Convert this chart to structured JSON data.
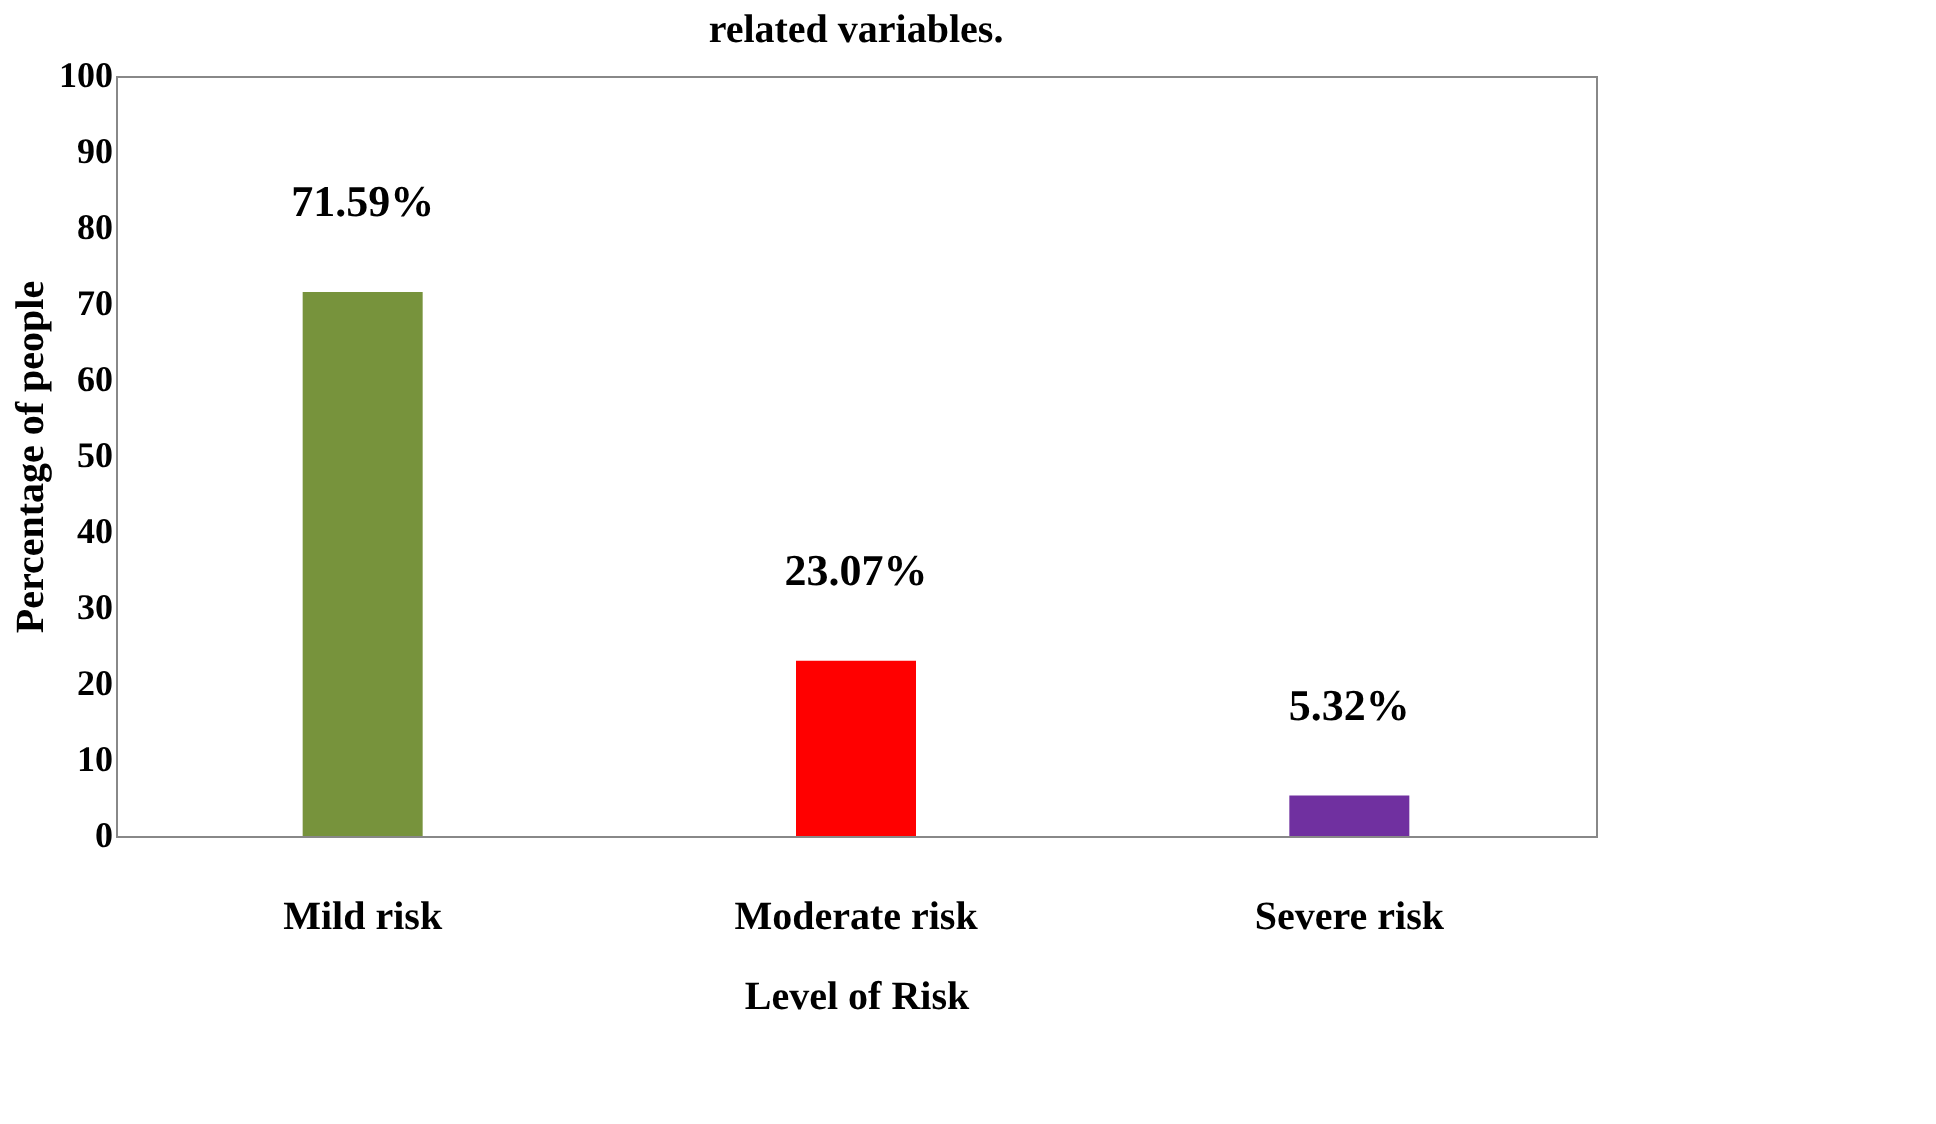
{
  "chart_data": {
    "type": "bar",
    "title": "related variables.",
    "xlabel": "Level of Risk",
    "ylabel": "Percentage of people",
    "categories": [
      "Mild risk",
      "Moderate risk",
      "Severe risk"
    ],
    "values": [
      71.59,
      23.07,
      5.32
    ],
    "colors": [
      "#77933c",
      "#ff0000",
      "#7030a0"
    ],
    "value_labels": [
      "71.59%",
      "23.07%",
      "5.32%"
    ],
    "ylim": [
      0,
      100
    ],
    "yticks": [
      0,
      10,
      20,
      30,
      40,
      50,
      60,
      70,
      80,
      90,
      100
    ],
    "grid": false
  }
}
